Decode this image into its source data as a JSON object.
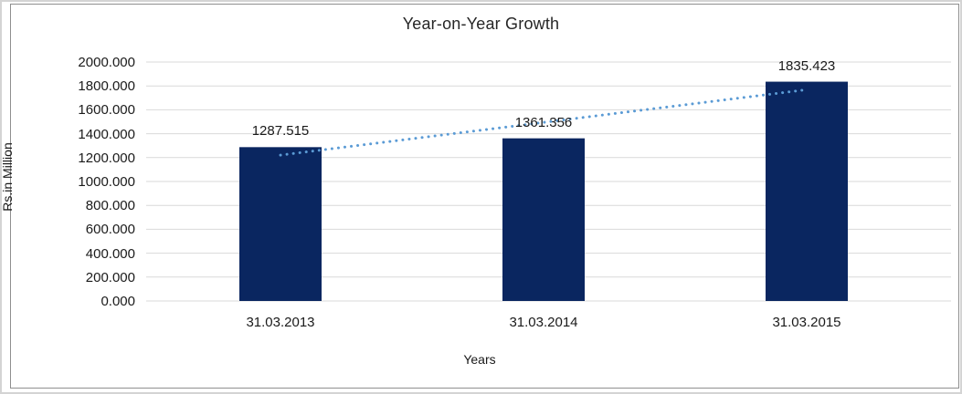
{
  "chart_data": {
    "type": "bar",
    "title": "Year-on-Year Growth",
    "xlabel": "Years",
    "ylabel": "Rs.in Million",
    "categories": [
      "31.03.2013",
      "31.03.2014",
      "31.03.2015"
    ],
    "values": [
      1287.515,
      1361.356,
      1835.423
    ],
    "data_labels": [
      "1287.515",
      "1361.356",
      "1835.423"
    ],
    "ylim": [
      0,
      2000
    ],
    "ytick_step": 200,
    "ytick_labels": [
      "0.000",
      "200.000",
      "400.000",
      "600.000",
      "800.000",
      "1000.000",
      "1200.000",
      "1400.000",
      "1600.000",
      "1800.000",
      "2000.000"
    ],
    "grid": true,
    "legend": "none",
    "colors": {
      "bar": "#0a2660",
      "trendline": "#5b9bd5",
      "gridline": "#d9d9d9",
      "text": "#1a1a1a",
      "chart_border": "#8f8f8f",
      "outer_border": "#d4d4d4"
    },
    "trendline": {
      "type": "linear",
      "style": "dotted"
    }
  }
}
